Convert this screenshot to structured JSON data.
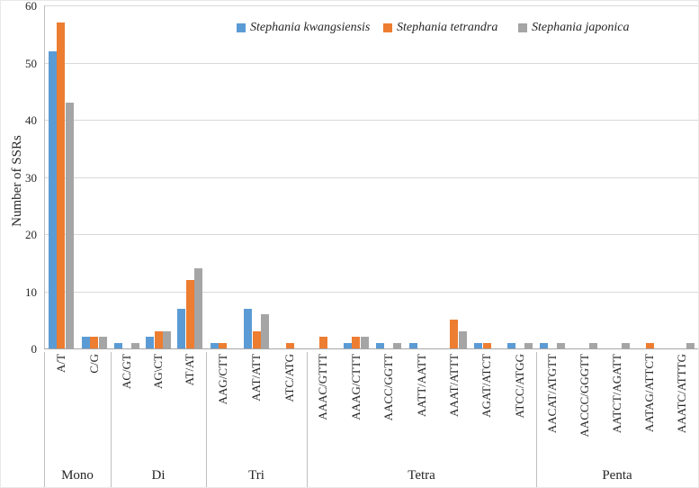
{
  "figure": {
    "background": "#ffffff",
    "text_color": "#262626",
    "gridline_color": "#d9d9d9",
    "axis_color": "#a6a6a6"
  },
  "chart_data": {
    "type": "bar",
    "title": "",
    "xlabel": "",
    "ylabel": "Number of SSRs",
    "ylim": [
      0,
      60
    ],
    "yticks": [
      0,
      10,
      20,
      30,
      40,
      50,
      60
    ],
    "grid": true,
    "legend_position": "top-center",
    "series": [
      {
        "name": "Stephania kwangsiensis",
        "color": "#5B9BD5"
      },
      {
        "name": "Stephania tetrandra",
        "color": "#ED7D31"
      },
      {
        "name": "Stephania japonica",
        "color": "#A5A5A5"
      }
    ],
    "groups": [
      {
        "label": "Mono",
        "categories": [
          "A/T",
          "C/G"
        ],
        "values": [
          [
            52,
            57,
            43
          ],
          [
            2,
            2,
            2
          ]
        ]
      },
      {
        "label": "Di",
        "categories": [
          "AC/GT",
          "AG\\CT",
          "AT/AT"
        ],
        "values": [
          [
            1,
            0,
            1
          ],
          [
            2,
            3,
            3
          ],
          [
            7,
            12,
            14
          ]
        ]
      },
      {
        "label": "Tri",
        "categories": [
          "AAG/CTT",
          "AAT/ATT",
          "ATC/ATG"
        ],
        "values": [
          [
            1,
            1,
            0
          ],
          [
            7,
            3,
            6
          ],
          [
            0,
            1,
            0
          ]
        ]
      },
      {
        "label": "Tetra",
        "categories": [
          "AAAC/GTTT",
          "AAAG/CTTT",
          "AACC/GGTT",
          "AATT/AATT",
          "AAAT/ATTT",
          "AGAT/ATCT",
          "ATCC/ATGG"
        ],
        "values": [
          [
            0,
            2,
            0
          ],
          [
            1,
            2,
            2
          ],
          [
            1,
            0,
            1
          ],
          [
            1,
            0,
            0
          ],
          [
            0,
            5,
            3
          ],
          [
            1,
            1,
            0
          ],
          [
            1,
            0,
            1
          ]
        ]
      },
      {
        "label": "Penta",
        "categories": [
          "AACAT/ATGTT",
          "AACCC/GGGTT",
          "AATCT/AGATT",
          "AATAG/ATTCT",
          "AAATC/ATTTG"
        ],
        "values": [
          [
            1,
            0,
            1
          ],
          [
            0,
            0,
            1
          ],
          [
            0,
            0,
            1
          ],
          [
            0,
            1,
            0
          ],
          [
            0,
            0,
            1
          ]
        ]
      }
    ]
  }
}
